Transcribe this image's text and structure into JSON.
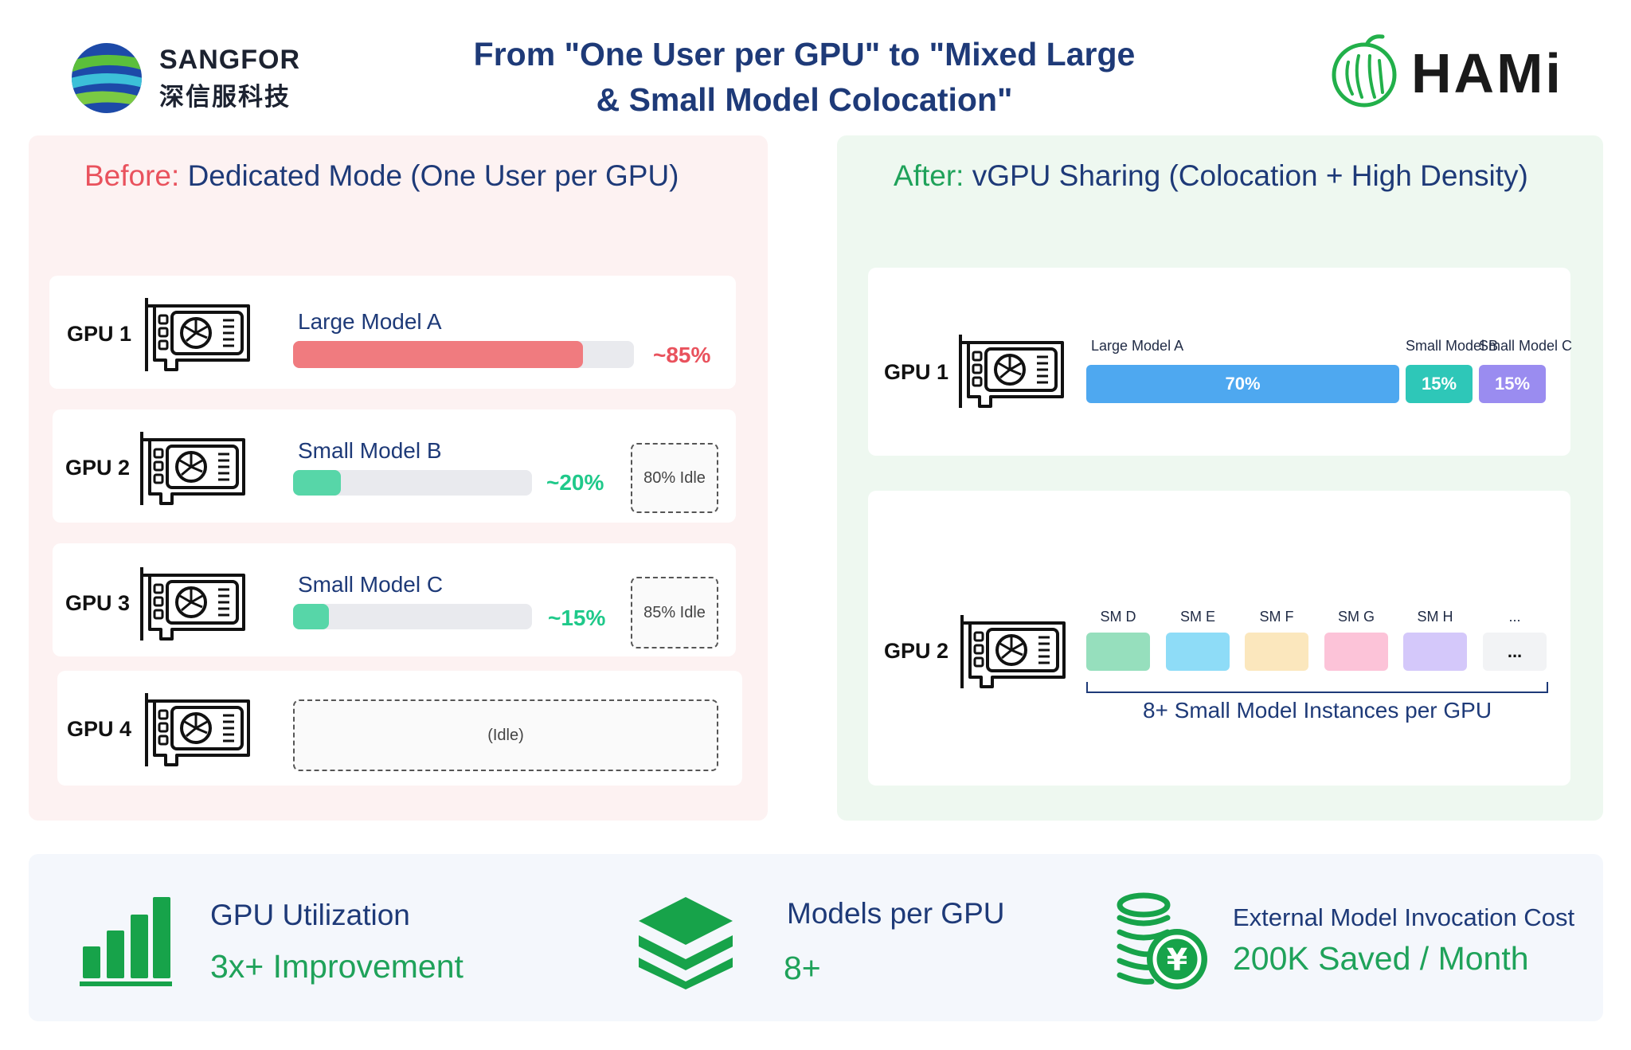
{
  "header": {
    "brand_en": "SANGFOR",
    "brand_cn": "深信服科技",
    "title_line1": "From \"One User per GPU\" to \"Mixed Large",
    "title_line2": "& Small Model Colocation\"",
    "partner": "HAMi"
  },
  "before": {
    "heading_prefix": "Before:",
    "heading_text": " Dedicated Mode (One User per GPU)",
    "gpus": [
      {
        "label": "GPU 1",
        "model": "Large Model A",
        "utilization": 85,
        "pct_text": "~85%",
        "idle_text": "",
        "color": "#f07b7f",
        "pct_color": "#e9525d"
      },
      {
        "label": "GPU 2",
        "model": "Small Model B",
        "utilization": 20,
        "pct_text": "~20%",
        "idle_text": "80% Idle",
        "color": "#57d6a8",
        "pct_color": "#1fc98a"
      },
      {
        "label": "GPU 3",
        "model": "Small Model C",
        "utilization": 15,
        "pct_text": "~15%",
        "idle_text": "85% Idle",
        "color": "#57d6a8",
        "pct_color": "#1fc98a"
      },
      {
        "label": "GPU 4",
        "idle_text": "(Idle)"
      }
    ]
  },
  "after": {
    "heading_prefix": "After:",
    "heading_text": " vGPU Sharing (Colocation + High Density)",
    "gpu1": {
      "label": "GPU 1",
      "segments": [
        {
          "name": "Large Model A",
          "value": 70,
          "text": "70%",
          "color": "#4ea8f0"
        },
        {
          "name": "Small Model B",
          "value": 15,
          "text": "15%",
          "color": "#2ec7b8"
        },
        {
          "name": "Small Model C",
          "value": 15,
          "text": "15%",
          "color": "#9a8cf0"
        }
      ]
    },
    "gpu2": {
      "label": "GPU 2",
      "instances": [
        {
          "name": "SM D",
          "color": "#96dfbd"
        },
        {
          "name": "SM E",
          "color": "#8edcf7"
        },
        {
          "name": "SM F",
          "color": "#fbe7bd"
        },
        {
          "name": "SM G",
          "color": "#fcc3d8"
        },
        {
          "name": "SM H",
          "color": "#d4c8fa"
        },
        {
          "name": "...",
          "block_text": "...",
          "color": "#f2f3f5"
        }
      ],
      "caption": "8+ Small Model Instances per GPU"
    }
  },
  "stats": [
    {
      "title": "GPU Utilization",
      "value": "3x+ Improvement",
      "icon": "bar-chart-icon"
    },
    {
      "title": "Models per GPU",
      "value": "8+",
      "icon": "layers-icon"
    },
    {
      "title": "External Model Invocation Cost",
      "value": "200K Saved / Month",
      "icon": "coins-yen-icon"
    }
  ],
  "colors": {
    "accent_green": "#1fa25a",
    "accent_red": "#e9525d",
    "title_blue": "#1e3a78"
  }
}
